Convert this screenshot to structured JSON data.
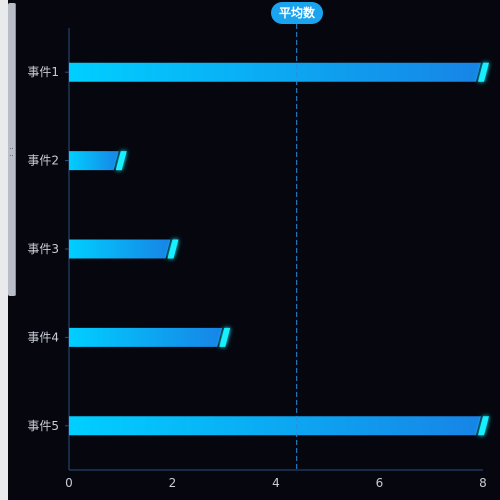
{
  "chart_data": {
    "type": "bar",
    "orientation": "horizontal",
    "categories": [
      "事件1",
      "事件2",
      "事件3",
      "事件4",
      "事件5"
    ],
    "values": [
      8,
      1,
      2,
      3,
      8
    ],
    "xlim": [
      0,
      8
    ],
    "xticks": [
      "0",
      "2",
      "4",
      "6",
      "8"
    ],
    "grid": false,
    "mark_line": {
      "label": "平均数",
      "value": 4.4
    },
    "colors": {
      "bar_start": "#00cfff",
      "bar_end": "#1784e6",
      "bar_cap": "#19f0ff",
      "axis": "#2c4f7e",
      "text": "#c8ccd6",
      "avg_line": "#2a8fd9"
    }
  }
}
